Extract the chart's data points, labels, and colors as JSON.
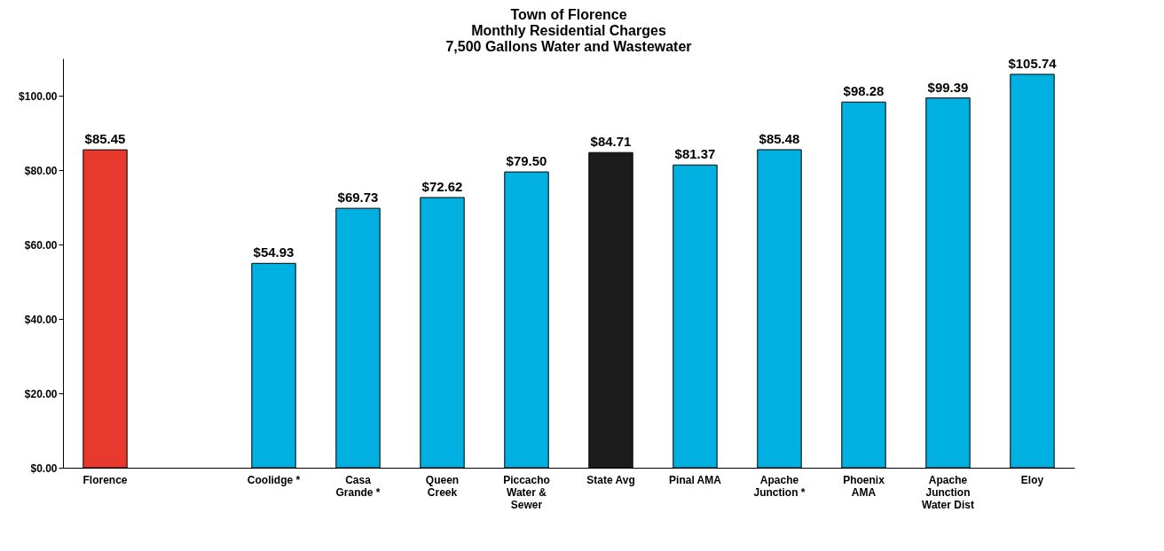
{
  "chart_data": {
    "type": "bar",
    "title": "Town of Florence\nMonthly Residential Charges\n7,500 Gallons Water and Wastewater",
    "categories": [
      "Florence",
      null,
      "Coolidge *",
      "Casa Grande *",
      "Queen Creek",
      "Piccacho Water & Sewer",
      "State Avg",
      "Pinal AMA",
      "Apache Junction *",
      "Phoenix AMA",
      "Apache Junction Water Dist",
      "Eloy"
    ],
    "values": [
      85.45,
      null,
      54.93,
      69.73,
      72.62,
      79.5,
      84.71,
      81.37,
      85.48,
      98.28,
      99.39,
      105.74
    ],
    "colors": [
      "#e8392f",
      "#00b0e0",
      "#00b0e0",
      "#00b0e0",
      "#00b0e0",
      "#00b0e0",
      "#1c1c1c",
      "#00b0e0",
      "#00b0e0",
      "#00b0e0",
      "#00b0e0",
      "#00b0e0"
    ],
    "value_labels": [
      "$85.45",
      null,
      "$54.93",
      "$69.73",
      "$72.62",
      "$79.50",
      "$84.71",
      "$81.37",
      "$85.48",
      "$98.28",
      "$99.39",
      "$105.74"
    ],
    "ylim": [
      0,
      110
    ],
    "yticks": [
      {
        "value": 0,
        "label": "$0.00"
      },
      {
        "value": 20,
        "label": "$20.00"
      },
      {
        "value": 40,
        "label": "$40.00"
      },
      {
        "value": 60,
        "label": "$60.00"
      },
      {
        "value": 80,
        "label": "$80.00"
      },
      {
        "value": 100,
        "label": "$100.00"
      }
    ],
    "grid": false
  }
}
